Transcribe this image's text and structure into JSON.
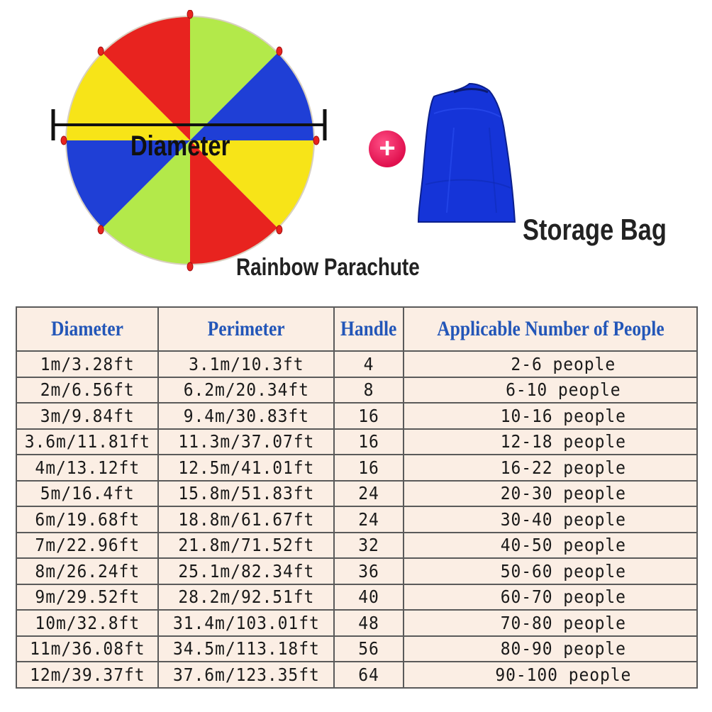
{
  "labels": {
    "diameter": "Diameter",
    "parachute": "Rainbow Parachute",
    "bag": "Storage Bag",
    "plus": "+"
  },
  "colors": {
    "red": "#e8231f",
    "yellow": "#f7e418",
    "green": "#b3e94a",
    "blue": "#1f3fd6",
    "bag": "#1534d8",
    "header_text": "#2356b8",
    "table_bg": "#fbeee4"
  },
  "icons": {
    "plus": "plus-icon"
  },
  "table": {
    "headers": [
      "Diameter",
      "Perimeter",
      "Handle",
      "Applicable Number of People"
    ],
    "rows": [
      [
        "1m/3.28ft",
        "3.1m/10.3ft",
        "4",
        "2-6 people"
      ],
      [
        "2m/6.56ft",
        "6.2m/20.34ft",
        "8",
        "6-10 people"
      ],
      [
        "3m/9.84ft",
        "9.4m/30.83ft",
        "16",
        "10-16 people"
      ],
      [
        "3.6m/11.81ft",
        "11.3m/37.07ft",
        "16",
        "12-18 people"
      ],
      [
        "4m/13.12ft",
        "12.5m/41.01ft",
        "16",
        "16-22 people"
      ],
      [
        "5m/16.4ft",
        "15.8m/51.83ft",
        "24",
        "20-30 people"
      ],
      [
        "6m/19.68ft",
        "18.8m/61.67ft",
        "24",
        "30-40 people"
      ],
      [
        "7m/22.96ft",
        "21.8m/71.52ft",
        "32",
        "40-50 people"
      ],
      [
        "8m/26.24ft",
        "25.1m/82.34ft",
        "36",
        "50-60 people"
      ],
      [
        "9m/29.52ft",
        "28.2m/92.51ft",
        "40",
        "60-70 people"
      ],
      [
        "10m/32.8ft",
        "31.4m/103.01ft",
        "48",
        "70-80 people"
      ],
      [
        "11m/36.08ft",
        "34.5m/113.18ft",
        "56",
        "80-90 people"
      ],
      [
        "12m/39.37ft",
        "37.6m/123.35ft",
        "64",
        "90-100 people"
      ]
    ]
  }
}
